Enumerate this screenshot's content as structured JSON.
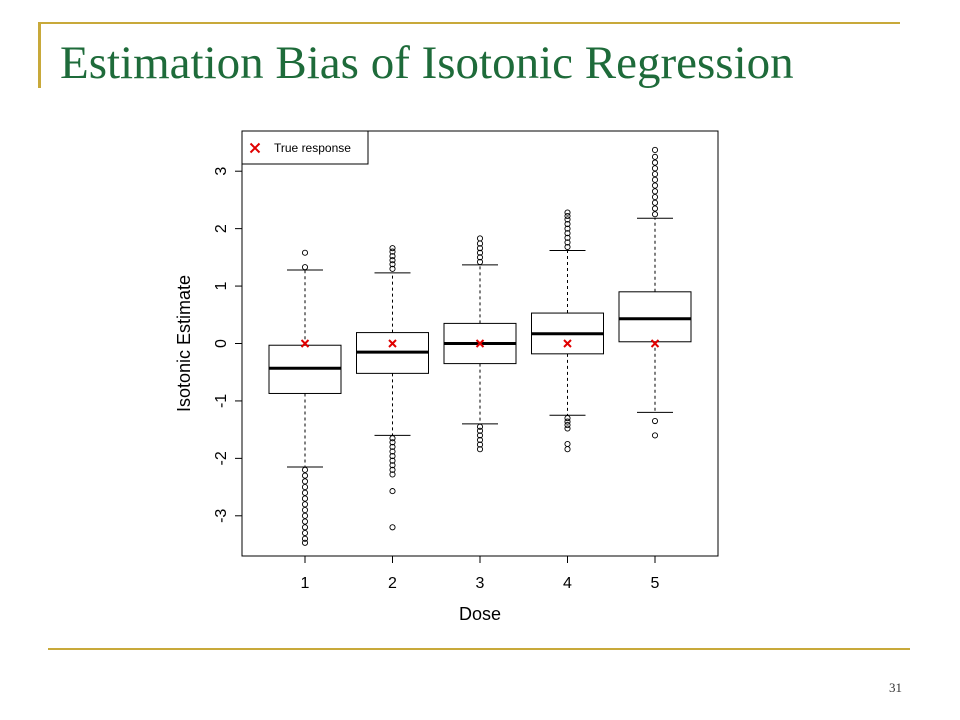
{
  "slide": {
    "title": "Estimation Bias of Isotonic Regression",
    "page_number": "31",
    "title_color": "#1e6b3a",
    "accent_color": "#c8a93a"
  },
  "chart_data": {
    "type": "boxplot",
    "xlabel": "Dose",
    "ylabel": "Isotonic Estimate",
    "categories": [
      "1",
      "2",
      "3",
      "4",
      "5"
    ],
    "ylim": [
      -3.7,
      3.7
    ],
    "yticks": [
      -3,
      -2,
      -1,
      0,
      1,
      2,
      3
    ],
    "grid": false,
    "legend": {
      "position": "top-left",
      "entries": [
        {
          "label": "True response",
          "marker": "x",
          "color": "#e00000"
        }
      ]
    },
    "true_response": [
      0,
      0,
      0,
      0,
      0
    ],
    "boxes": [
      {
        "category": "1",
        "q1": -0.87,
        "median": -0.43,
        "q3": -0.03,
        "whisker_low": -2.15,
        "whisker_high": 1.28,
        "outliers_high": [
          1.33,
          1.58
        ],
        "outliers_low": [
          -2.2,
          -2.3,
          -2.4,
          -2.5,
          -2.6,
          -2.7,
          -2.8,
          -2.9,
          -3.0,
          -3.1,
          -3.2,
          -3.3,
          -3.4,
          -3.47
        ]
      },
      {
        "category": "2",
        "q1": -0.52,
        "median": -0.15,
        "q3": 0.19,
        "whisker_low": -1.6,
        "whisker_high": 1.23,
        "outliers_high": [
          1.3,
          1.38,
          1.45,
          1.52,
          1.6,
          1.66
        ],
        "outliers_low": [
          -1.65,
          -1.72,
          -1.8,
          -1.88,
          -1.96,
          -2.04,
          -2.12,
          -2.2,
          -2.28,
          -2.57,
          -3.2
        ]
      },
      {
        "category": "3",
        "q1": -0.35,
        "median": 0.0,
        "q3": 0.35,
        "whisker_low": -1.4,
        "whisker_high": 1.37,
        "outliers_high": [
          1.42,
          1.5,
          1.58,
          1.66,
          1.74,
          1.83
        ],
        "outliers_low": [
          -1.45,
          -1.52,
          -1.6,
          -1.68,
          -1.76,
          -1.84
        ]
      },
      {
        "category": "4",
        "q1": -0.18,
        "median": 0.17,
        "q3": 0.53,
        "whisker_low": -1.25,
        "whisker_high": 1.62,
        "outliers_high": [
          1.68,
          1.76,
          1.84,
          1.92,
          2.0,
          2.08,
          2.16,
          2.22,
          2.28
        ],
        "outliers_low": [
          -1.3,
          -1.36,
          -1.42,
          -1.48,
          -1.75,
          -1.84
        ]
      },
      {
        "category": "5",
        "q1": 0.03,
        "median": 0.43,
        "q3": 0.9,
        "whisker_low": -1.2,
        "whisker_high": 2.18,
        "outliers_high": [
          2.25,
          2.35,
          2.45,
          2.55,
          2.65,
          2.75,
          2.85,
          2.95,
          3.05,
          3.15,
          3.25,
          3.37
        ],
        "outliers_low": [
          -1.35,
          -1.6
        ]
      }
    ]
  }
}
